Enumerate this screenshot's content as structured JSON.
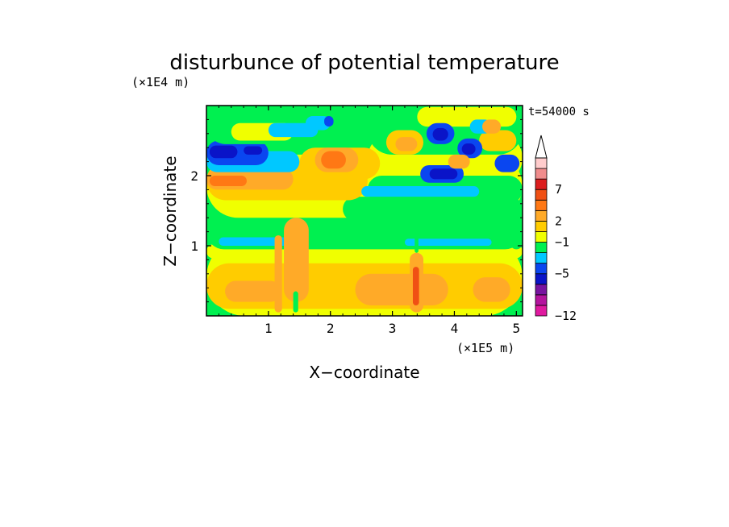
{
  "chart_data": {
    "type": "heatmap",
    "title": "disturbunce of potential temperature",
    "time_label": "t=54000 s",
    "xlabel": "X−coordinate",
    "ylabel": "Z−coordinate",
    "x_unit": "(×1E5 m)",
    "y_unit": "(×1E4 m)",
    "xlim": [
      0,
      5.1
    ],
    "ylim": [
      0,
      3.0
    ],
    "x_ticks": [
      {
        "value": 1,
        "label": "1"
      },
      {
        "value": 2,
        "label": "2"
      },
      {
        "value": 3,
        "label": "3"
      },
      {
        "value": 4,
        "label": "4"
      },
      {
        "value": 5,
        "label": "5"
      }
    ],
    "y_ticks": [
      {
        "value": 1,
        "label": "1"
      },
      {
        "value": 2,
        "label": "2"
      }
    ],
    "colorbar": {
      "colors": [
        "#e01aa0",
        "#b4149e",
        "#7814a0",
        "#0a14c8",
        "#0a46f0",
        "#00c8ff",
        "#00f050",
        "#f0ff00",
        "#ffcc00",
        "#ffaa28",
        "#ff7814",
        "#f05014",
        "#dc1e1e",
        "#f08c8c",
        "#ffcccc"
      ],
      "labels": [
        {
          "level": 12,
          "text": "7"
        },
        {
          "level": 9,
          "text": "2"
        },
        {
          "level": 7,
          "text": "−1"
        },
        {
          "level": 4,
          "text": "−5"
        },
        {
          "level": 0,
          "text": "−12"
        }
      ],
      "extend_top": true
    },
    "regions": [
      {
        "color": "#f0ff00",
        "x": 0.0,
        "z": 0.0,
        "w": 5.1,
        "h": 1.1
      },
      {
        "color": "#ffcc00",
        "x": 0.0,
        "z": 0.1,
        "w": 5.1,
        "h": 0.65
      },
      {
        "color": "#ffaa28",
        "x": 2.4,
        "z": 0.15,
        "w": 1.5,
        "h": 0.45
      },
      {
        "color": "#ffaa28",
        "x": 0.3,
        "z": 0.2,
        "w": 0.9,
        "h": 0.3
      },
      {
        "color": "#ffaa28",
        "x": 4.3,
        "z": 0.2,
        "w": 0.6,
        "h": 0.35
      },
      {
        "color": "#f0ff00",
        "x": 0.0,
        "z": 0.82,
        "w": 5.1,
        "h": 0.2
      },
      {
        "color": "#00f050",
        "x": 0.0,
        "z": 0.95,
        "w": 5.1,
        "h": 0.5
      },
      {
        "color": "#00c8ff",
        "x": 0.2,
        "z": 1.0,
        "w": 1.2,
        "h": 0.12
      },
      {
        "color": "#00c8ff",
        "x": 3.2,
        "z": 1.0,
        "w": 1.4,
        "h": 0.1
      },
      {
        "color": "#f0ff00",
        "x": 0.0,
        "z": 1.4,
        "w": 5.1,
        "h": 0.9
      },
      {
        "color": "#00f050",
        "x": 2.2,
        "z": 1.35,
        "w": 2.9,
        "h": 0.35
      },
      {
        "color": "#ffcc00",
        "x": 0.0,
        "z": 1.65,
        "w": 2.6,
        "h": 0.55
      },
      {
        "color": "#ffaa28",
        "x": 0.0,
        "z": 1.8,
        "w": 1.4,
        "h": 0.3
      },
      {
        "color": "#ff7814",
        "x": 0.05,
        "z": 1.85,
        "w": 0.6,
        "h": 0.15
      },
      {
        "color": "#f0ff00",
        "x": 2.6,
        "z": 1.9,
        "w": 2.5,
        "h": 0.7
      },
      {
        "color": "#00f050",
        "x": 2.6,
        "z": 1.6,
        "w": 2.5,
        "h": 0.4
      },
      {
        "color": "#00c8ff",
        "x": 2.5,
        "z": 1.7,
        "w": 1.9,
        "h": 0.15
      },
      {
        "color": "#00c8ff",
        "x": 0.0,
        "z": 2.05,
        "w": 1.5,
        "h": 0.3
      },
      {
        "color": "#0a46f0",
        "x": 0.0,
        "z": 2.15,
        "w": 1.0,
        "h": 0.35
      },
      {
        "color": "#0a14c8",
        "x": 0.05,
        "z": 2.25,
        "w": 0.45,
        "h": 0.18
      },
      {
        "color": "#0a14c8",
        "x": 0.6,
        "z": 2.3,
        "w": 0.3,
        "h": 0.12
      },
      {
        "color": "#00f050",
        "x": 0.0,
        "z": 2.45,
        "w": 2.6,
        "h": 0.55
      },
      {
        "color": "#f0ff00",
        "x": 0.4,
        "z": 2.5,
        "w": 1.0,
        "h": 0.25
      },
      {
        "color": "#00c8ff",
        "x": 1.0,
        "z": 2.55,
        "w": 0.8,
        "h": 0.2
      },
      {
        "color": "#ffcc00",
        "x": 1.5,
        "z": 1.95,
        "w": 1.3,
        "h": 0.45
      },
      {
        "color": "#ffaa28",
        "x": 1.75,
        "z": 2.05,
        "w": 0.7,
        "h": 0.35
      },
      {
        "color": "#ff7814",
        "x": 1.85,
        "z": 2.1,
        "w": 0.4,
        "h": 0.25
      },
      {
        "color": "#00c8ff",
        "x": 1.6,
        "z": 2.65,
        "w": 0.4,
        "h": 0.2
      },
      {
        "color": "#0a46f0",
        "x": 1.9,
        "z": 2.7,
        "w": 0.15,
        "h": 0.15
      },
      {
        "color": "#00f050",
        "x": 2.6,
        "z": 2.3,
        "w": 2.5,
        "h": 0.7
      },
      {
        "color": "#ffcc00",
        "x": 2.9,
        "z": 2.3,
        "w": 0.6,
        "h": 0.35
      },
      {
        "color": "#ffaa28",
        "x": 3.05,
        "z": 2.35,
        "w": 0.35,
        "h": 0.2
      },
      {
        "color": "#ffcc00",
        "x": 4.4,
        "z": 2.35,
        "w": 0.6,
        "h": 0.3
      },
      {
        "color": "#f0ff00",
        "x": 3.4,
        "z": 2.7,
        "w": 1.6,
        "h": 0.28
      },
      {
        "color": "#0a46f0",
        "x": 3.45,
        "z": 1.9,
        "w": 0.7,
        "h": 0.25
      },
      {
        "color": "#0a14c8",
        "x": 3.6,
        "z": 1.95,
        "w": 0.45,
        "h": 0.15
      },
      {
        "color": "#0a46f0",
        "x": 3.55,
        "z": 2.45,
        "w": 0.45,
        "h": 0.3
      },
      {
        "color": "#0a14c8",
        "x": 3.65,
        "z": 2.5,
        "w": 0.25,
        "h": 0.18
      },
      {
        "color": "#0a46f0",
        "x": 4.05,
        "z": 2.25,
        "w": 0.4,
        "h": 0.28
      },
      {
        "color": "#0a14c8",
        "x": 4.12,
        "z": 2.3,
        "w": 0.22,
        "h": 0.16
      },
      {
        "color": "#0a46f0",
        "x": 4.65,
        "z": 2.05,
        "w": 0.4,
        "h": 0.25
      },
      {
        "color": "#00c8ff",
        "x": 4.25,
        "z": 2.6,
        "w": 0.35,
        "h": 0.2
      },
      {
        "color": "#ffaa28",
        "x": 3.9,
        "z": 2.1,
        "w": 0.35,
        "h": 0.2
      },
      {
        "color": "#ffaa28",
        "x": 4.45,
        "z": 2.6,
        "w": 0.3,
        "h": 0.2
      },
      {
        "color": "#00f050",
        "x": 4.9,
        "z": 0.95,
        "w": 0.2,
        "h": 0.25
      },
      {
        "color": "#ffaa28",
        "x": 3.28,
        "z": 0.05,
        "w": 0.22,
        "h": 0.85
      },
      {
        "color": "#f05014",
        "x": 3.33,
        "z": 0.15,
        "w": 0.1,
        "h": 0.55
      },
      {
        "color": "#00f050",
        "x": 3.36,
        "z": 0.9,
        "w": 0.06,
        "h": 0.35
      },
      {
        "color": "#ffaa28",
        "x": 1.1,
        "z": 0.05,
        "w": 0.12,
        "h": 1.1
      },
      {
        "color": "#ffaa28",
        "x": 1.25,
        "z": 0.2,
        "w": 0.4,
        "h": 1.2
      },
      {
        "color": "#00f050",
        "x": 1.4,
        "z": 0.05,
        "w": 0.08,
        "h": 0.3
      }
    ]
  }
}
